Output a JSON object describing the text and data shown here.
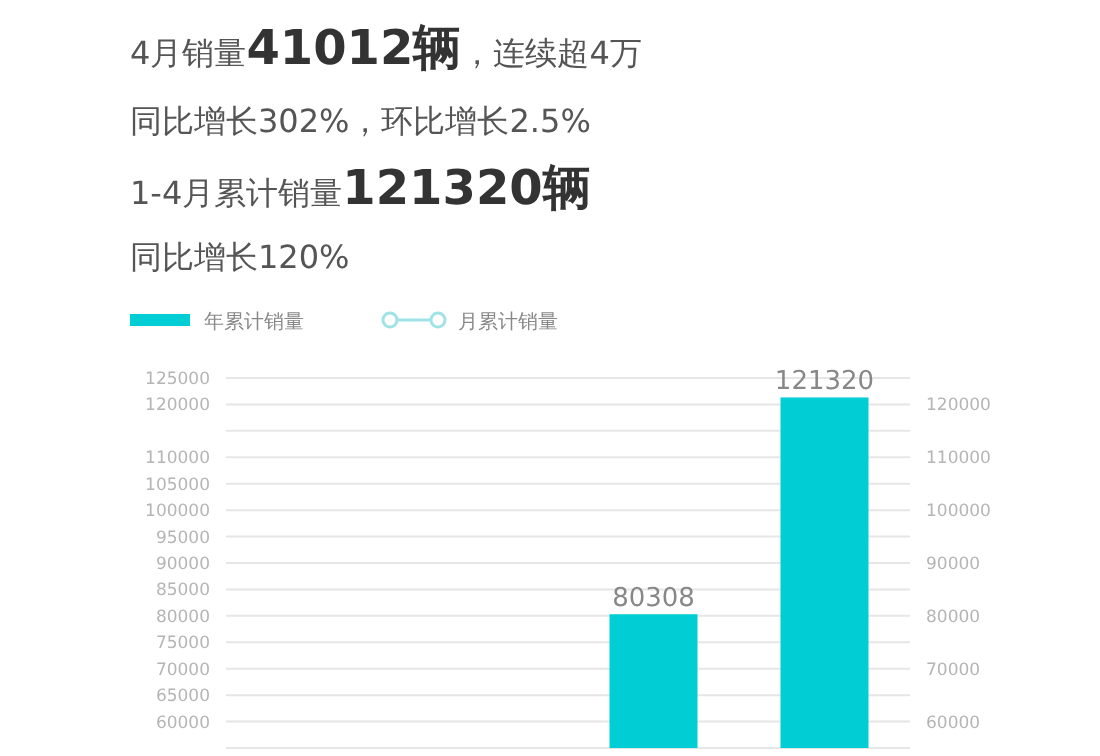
{
  "chart_data": {
    "type": "bar",
    "annotations": [
      "4月销量41012辆，连续超4万",
      "同比增长302%，环比增长2.5%",
      "1-4月累计销量121320辆",
      "同比增长120%"
    ],
    "categories": [
      null,
      null,
      null,
      null
    ],
    "series": [
      {
        "name": "年累计销量",
        "color": "#00cdd4",
        "values": [
          null,
          null,
          80308,
          121320
        ]
      },
      {
        "name": "月累计销量",
        "type": "line",
        "color": "#9fe3e6",
        "marker": "circle",
        "values": [
          null,
          null,
          null,
          null
        ]
      }
    ],
    "ylim": [
      55000,
      125000
    ],
    "yticks": [
      {
        "value": 55000,
        "label": null
      },
      60000,
      65000,
      70000,
      75000,
      80000,
      85000,
      90000,
      95000,
      100000,
      105000,
      110000,
      {
        "value": 115000,
        "label": null
      },
      120000,
      125000
    ],
    "y2lim": [
      55000,
      125000
    ],
    "y2ticks": [
      60000,
      70000,
      80000,
      90000,
      100000,
      110000,
      120000
    ],
    "tick_labels": "y",
    "grid": "y",
    "legend": "top left",
    "data_labels": true
  }
}
